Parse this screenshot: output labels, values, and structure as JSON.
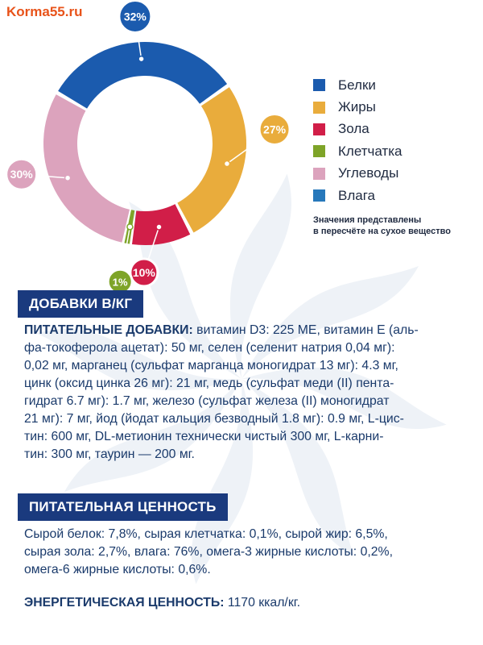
{
  "site_label": "Korma55.ru",
  "colors": {
    "protein": "#1b5bae",
    "fat": "#e9ac3c",
    "ash": "#d11e48",
    "fiber": "#7ea428",
    "carbs": "#dca3bd",
    "moisture": "#2778bb",
    "heading_bg": "#1a3a7e",
    "text": "#1a3a6b"
  },
  "chart_data": {
    "type": "pie",
    "style": "donut",
    "categories": [
      "Белки",
      "Жиры",
      "Зола",
      "Клетчатка",
      "Углеводы",
      "Влага"
    ],
    "values": [
      32,
      27,
      10,
      1,
      30,
      0
    ],
    "labels": [
      "32%",
      "27%",
      "10%",
      "1%",
      "30%",
      ""
    ],
    "legend_position": "right",
    "note": [
      "Значения представлены",
      "в пересчёте на сухое вещество"
    ]
  },
  "additives": {
    "heading": "ДОБАВКИ В/КГ",
    "lead": "ПИТАТЕЛЬНЫЕ ДОБАВКИ:",
    "lines": [
      "витамин D3: 225 МЕ, витамин Е (аль-",
      "фа-токоферола ацетат): 50 мг, селен (селенит натрия 0,04 мг):",
      "0,02 мг, марганец (сульфат марганца моногидрат 13 мг): 4.3 мг,",
      "цинк (оксид цинка 26 мг): 21 мг, медь (сульфат меди (II) пента-",
      "гидрат 6.7 мг): 1.7 мг, железо (сульфат железа (II) моногидрат",
      "21 мг): 7 мг, йод (йодат кальция безводный 1.8 мг): 0.9 мг, L-цис-",
      "тин: 600 мг, DL-метионин технически чистый 300 мг, L-карни-",
      "тин: 300 мг, таурин — 200 мг."
    ]
  },
  "nutrition": {
    "heading": "ПИТАТЕЛЬНАЯ ЦЕННОСТЬ",
    "lines": [
      "Сырой белок: 7,8%, сырая клетчатка: 0,1%, сырой жир: 6,5%,",
      "сырая зола: 2,7%, влага: 76%, омега-3 жирные кислоты: 0,2%,",
      "омега-6 жирные кислоты: 0,6%."
    ],
    "energy_label": "ЭНЕРГЕТИЧЕСКАЯ ЦЕННОСТЬ:",
    "energy_value": " 1170 ккал/кг."
  }
}
